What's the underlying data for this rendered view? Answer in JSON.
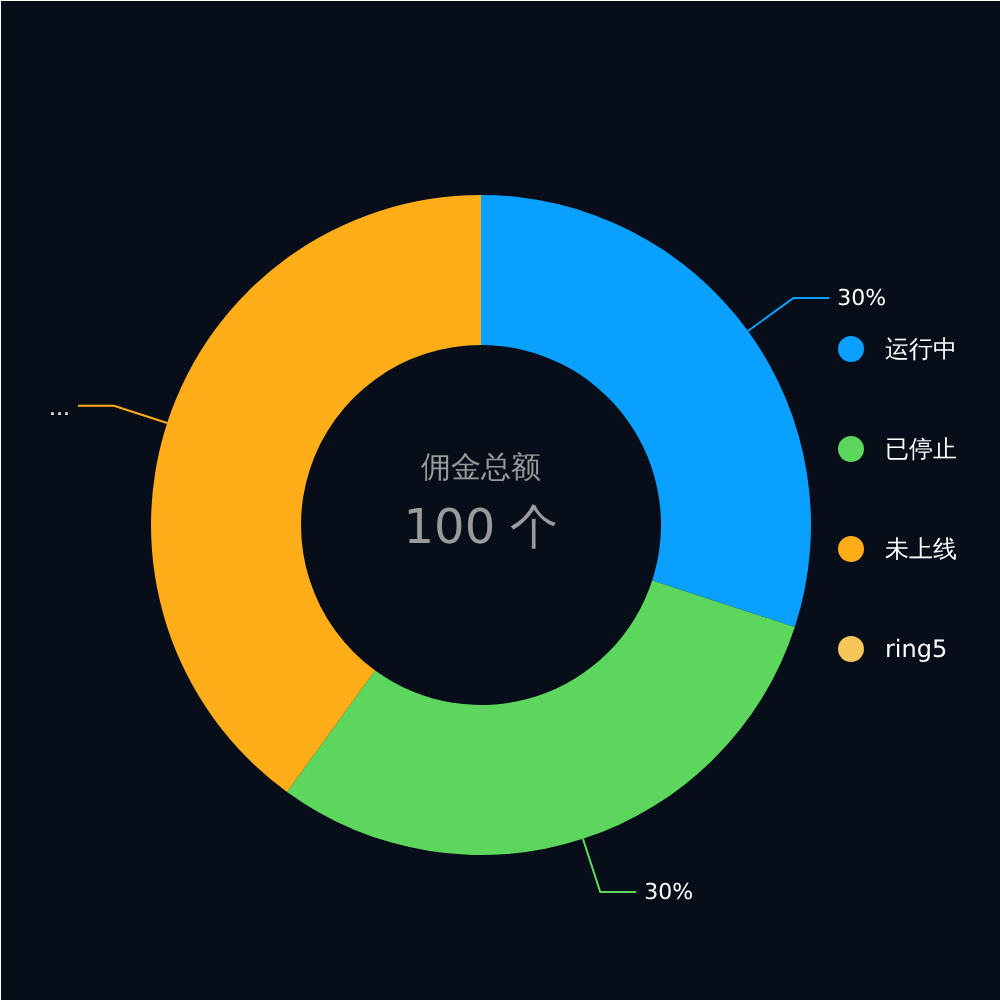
{
  "chart_data": {
    "type": "donut",
    "categories": [
      "运行中",
      "已停止",
      "未上线",
      "ring5"
    ],
    "values": [
      30,
      30,
      40,
      0
    ],
    "colors": [
      "#0aa0ff",
      "#5cd65c",
      "#ffae1a",
      "#f7c65a"
    ],
    "value_labels": [
      "30%",
      "30%",
      "...",
      null
    ],
    "legend": "right",
    "annotations": [
      "佣金总额",
      "100 个"
    ]
  }
}
